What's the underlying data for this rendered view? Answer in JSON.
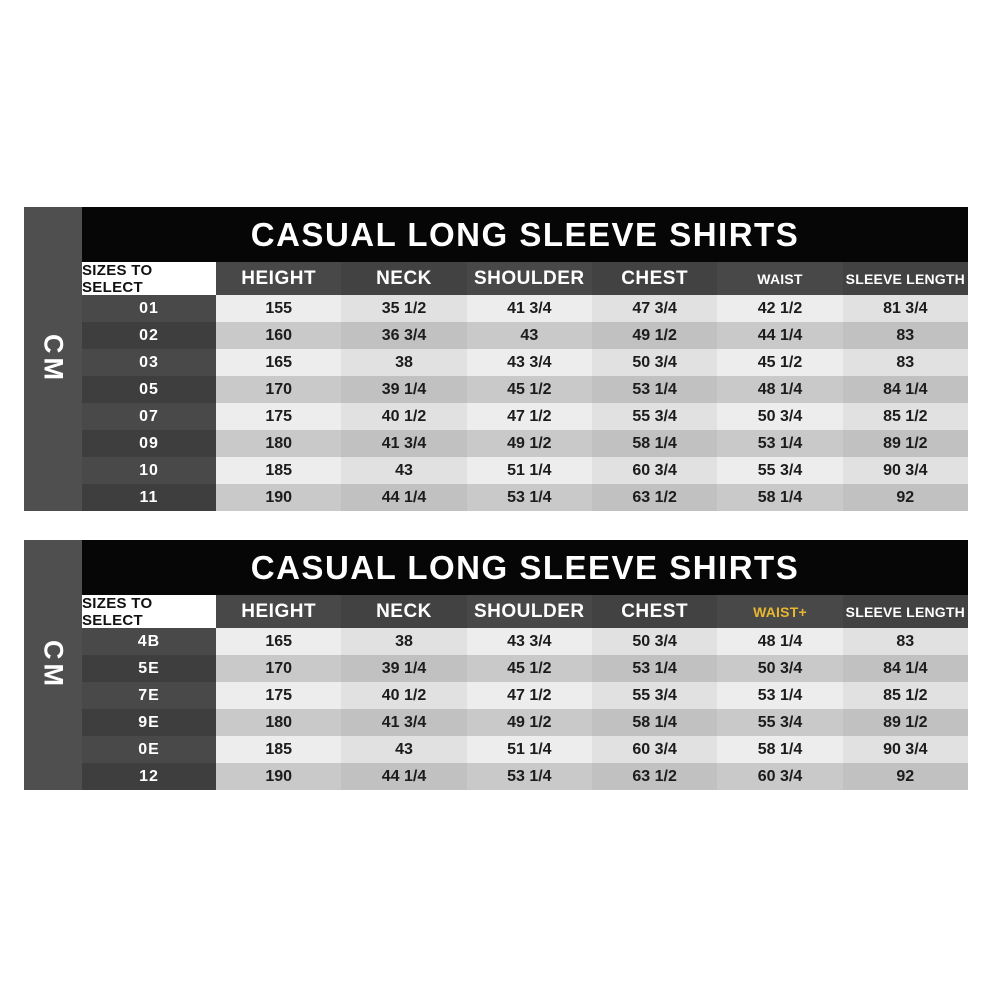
{
  "palette": {
    "background": "#ffffff",
    "title_bar": "#060606",
    "header_dark": "#484848",
    "unit_bar": "#4f4f4f",
    "size_cell_light": "#494949",
    "size_cell_dark": "#3e3e3e",
    "row_light": "#ededed",
    "row_dark": "#c9c9c9",
    "waist_plus_accent": "#e9b72f"
  },
  "chart_data": [
    {
      "type": "table",
      "title": "CASUAL LONG SLEEVE SHIRTS",
      "unit_label": "CM",
      "size_header": "SIZES TO SELECT",
      "columns": [
        "HEIGHT",
        "NECK",
        "SHOULDER",
        "CHEST",
        "WAIST",
        "SLEEVE LENGTH"
      ],
      "highlight": null,
      "rows": [
        {
          "size": "01",
          "values": [
            "155",
            "35 1/2",
            "41 3/4",
            "47 3/4",
            "42 1/2",
            "81 3/4"
          ]
        },
        {
          "size": "02",
          "values": [
            "160",
            "36 3/4",
            "43",
            "49 1/2",
            "44 1/4",
            "83"
          ]
        },
        {
          "size": "03",
          "values": [
            "165",
            "38",
            "43 3/4",
            "50 3/4",
            "45 1/2",
            "83"
          ]
        },
        {
          "size": "05",
          "values": [
            "170",
            "39 1/4",
            "45 1/2",
            "53 1/4",
            "48 1/4",
            "84 1/4"
          ]
        },
        {
          "size": "07",
          "values": [
            "175",
            "40 1/2",
            "47 1/2",
            "55 3/4",
            "50 3/4",
            "85 1/2"
          ]
        },
        {
          "size": "09",
          "values": [
            "180",
            "41 3/4",
            "49 1/2",
            "58 1/4",
            "53 1/4",
            "89 1/2"
          ]
        },
        {
          "size": "10",
          "values": [
            "185",
            "43",
            "51 1/4",
            "60 3/4",
            "55 3/4",
            "90 3/4"
          ]
        },
        {
          "size": "11",
          "values": [
            "190",
            "44 1/4",
            "53 1/4",
            "63 1/2",
            "58 1/4",
            "92"
          ]
        }
      ]
    },
    {
      "type": "table",
      "title": "CASUAL LONG SLEEVE SHIRTS",
      "unit_label": "CM",
      "size_header": "SIZES TO SELECT",
      "columns": [
        "HEIGHT",
        "NECK",
        "SHOULDER",
        "CHEST",
        "WAIST+",
        "SLEEVE LENGTH"
      ],
      "highlight": {
        "column_index": 4,
        "color": "#e9b72f"
      },
      "rows": [
        {
          "size": "4B",
          "values": [
            "165",
            "38",
            "43 3/4",
            "50 3/4",
            "48 1/4",
            "83"
          ]
        },
        {
          "size": "5E",
          "values": [
            "170",
            "39 1/4",
            "45 1/2",
            "53 1/4",
            "50 3/4",
            "84 1/4"
          ]
        },
        {
          "size": "7E",
          "values": [
            "175",
            "40 1/2",
            "47 1/2",
            "55 3/4",
            "53 1/4",
            "85 1/2"
          ]
        },
        {
          "size": "9E",
          "values": [
            "180",
            "41 3/4",
            "49 1/2",
            "58 1/4",
            "55 3/4",
            "89 1/2"
          ]
        },
        {
          "size": "0E",
          "values": [
            "185",
            "43",
            "51 1/4",
            "60 3/4",
            "58 1/4",
            "90 3/4"
          ]
        },
        {
          "size": "12",
          "values": [
            "190",
            "44 1/4",
            "53 1/4",
            "63 1/2",
            "60 3/4",
            "92"
          ]
        }
      ]
    }
  ]
}
